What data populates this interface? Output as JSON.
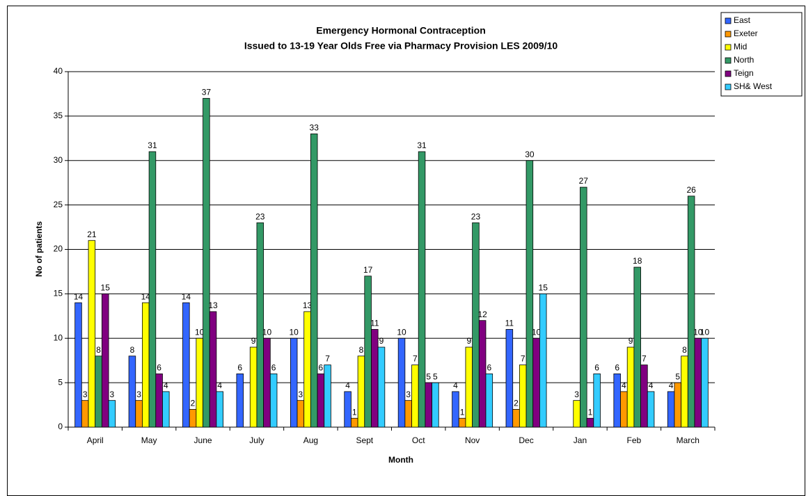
{
  "chart_data": {
    "type": "bar",
    "title": "Emergency Hormonal Contraception",
    "subtitle": "Issued to 13-19 Year Olds Free via Pharmacy Provision LES  2009/10",
    "x_label": "Month",
    "y_label": "No of patients",
    "categories": [
      "April",
      "May",
      "June",
      "July",
      "Aug",
      "Sept",
      "Oct",
      "Nov",
      "Dec",
      "Jan",
      "Feb",
      "March"
    ],
    "series": [
      {
        "name": "East",
        "color": "#3366ff",
        "values": [
          14,
          8,
          14,
          6,
          10,
          4,
          10,
          4,
          11,
          null,
          6,
          4
        ]
      },
      {
        "name": "Exeter",
        "color": "#ff9900",
        "values": [
          3,
          3,
          2,
          null,
          3,
          1,
          3,
          1,
          2,
          null,
          4,
          5
        ]
      },
      {
        "name": "Mid",
        "color": "#ffff00",
        "values": [
          21,
          14,
          10,
          9,
          13,
          8,
          7,
          9,
          7,
          3,
          9,
          8
        ]
      },
      {
        "name": "North",
        "color": "#339966",
        "values": [
          8,
          31,
          37,
          23,
          33,
          17,
          31,
          23,
          30,
          27,
          18,
          26
        ]
      },
      {
        "name": "Teign",
        "color": "#800080",
        "values": [
          15,
          6,
          13,
          10,
          6,
          11,
          5,
          12,
          10,
          1,
          7,
          10
        ]
      },
      {
        "name": "SH& West",
        "color": "#33ccff",
        "values": [
          3,
          4,
          4,
          6,
          7,
          9,
          5,
          6,
          15,
          6,
          4,
          10
        ]
      }
    ],
    "ylim": [
      0,
      40
    ],
    "yticks": [
      0,
      5,
      10,
      15,
      20,
      25,
      30,
      35,
      40
    ],
    "grid": true,
    "legend": "top-right"
  }
}
